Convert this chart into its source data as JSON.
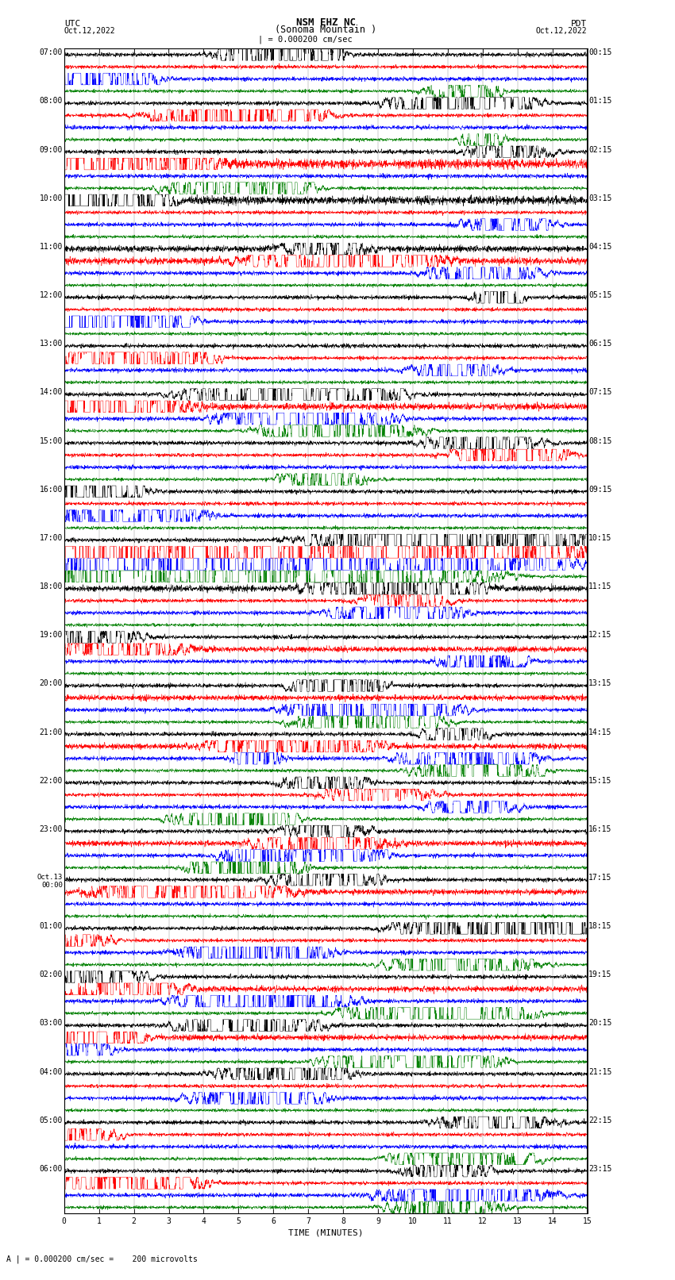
{
  "title_line1": "NSM EHZ NC",
  "title_line2": "(Sonoma Mountain )",
  "title_scale": "| = 0.000200 cm/sec",
  "utc_label": "UTC",
  "utc_date": "Oct.12,2022",
  "pdt_label": "PDT",
  "pdt_date": "Oct.12,2022",
  "xlabel": "TIME (MINUTES)",
  "footer": "A | = 0.000200 cm/sec =    200 microvolts",
  "trace_colors": [
    "black",
    "red",
    "blue",
    "green"
  ],
  "utc_hour_labels": [
    "07:00",
    "08:00",
    "09:00",
    "10:00",
    "11:00",
    "12:00",
    "13:00",
    "14:00",
    "15:00",
    "16:00",
    "17:00",
    "18:00",
    "19:00",
    "20:00",
    "21:00",
    "22:00",
    "23:00",
    "Oct.13\n00:00",
    "01:00",
    "02:00",
    "03:00",
    "04:00",
    "05:00",
    "06:00"
  ],
  "pdt_hour_labels": [
    "00:15",
    "01:15",
    "02:15",
    "03:15",
    "04:15",
    "05:15",
    "06:15",
    "07:15",
    "08:15",
    "09:15",
    "10:15",
    "11:15",
    "12:15",
    "13:15",
    "14:15",
    "15:15",
    "16:15",
    "17:15",
    "18:15",
    "19:15",
    "20:15",
    "21:15",
    "22:15",
    "23:15"
  ],
  "n_hours": 24,
  "traces_per_hour": 4,
  "xmin": 0,
  "xmax": 15,
  "bg_color": "white",
  "trace_lw": 0.35,
  "grid_color": "#888888",
  "grid_lw": 0.3
}
